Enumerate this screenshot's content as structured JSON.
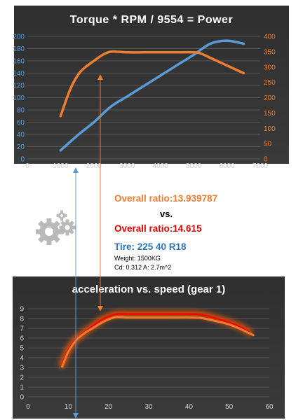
{
  "colors": {
    "torque": "#ED7D31",
    "power": "#5B9BD5",
    "accel_a": "#ED7D31",
    "accel_b": "#FF0000",
    "ratio_a_text": "#ED7D31",
    "ratio_b_text": "#E00000",
    "tire_text": "#2E75B6",
    "left_axis": "#5B9BD5",
    "right_axis": "#ED7D31"
  },
  "info": {
    "ratio_a": "Overall ratio:13.939787",
    "vs": "vs.",
    "ratio_b": "Overall ratio:14.615",
    "tire": "Tire: 225 40 R18",
    "weight": "Weight: 1500KG",
    "cd": "Cd: 0.312 A: 2.7m^2"
  },
  "icons": {
    "gears": "gears-icon"
  },
  "chart_data": [
    {
      "type": "line",
      "title": "Torque * RPM / 9554 = Power",
      "xlabel": "",
      "ylabel": "",
      "y2label": "",
      "xlim": [
        0,
        7000
      ],
      "ylim": [
        0,
        200
      ],
      "y2lim": [
        0,
        400
      ],
      "x_ticks": [
        0,
        1000,
        2000,
        3000,
        4000,
        5000,
        6000,
        7000
      ],
      "y_ticks": [
        0,
        20,
        40,
        60,
        80,
        100,
        120,
        140,
        160,
        180,
        200
      ],
      "y2_ticks": [
        0,
        50,
        100,
        150,
        200,
        250,
        300,
        350,
        400
      ],
      "grid": true,
      "series": [
        {
          "axis": "left",
          "color": "#5B9BD5",
          "x": [
            1000,
            1500,
            2000,
            2500,
            3000,
            3500,
            4000,
            4500,
            5000,
            5500,
            6000,
            6500
          ],
          "y": [
            14,
            38,
            60,
            85,
            102,
            119,
            136,
            153,
            170,
            188,
            193,
            188
          ]
        },
        {
          "axis": "right",
          "color": "#ED7D31",
          "x": [
            1000,
            1300,
            1600,
            2000,
            2300,
            2500,
            2700,
            3000,
            3500,
            4000,
            4500,
            5000,
            5200,
            5500,
            6000,
            6500
          ],
          "y": [
            140,
            230,
            285,
            320,
            342,
            350,
            350,
            348,
            348,
            348,
            348,
            348,
            345,
            330,
            305,
            280
          ]
        }
      ]
    },
    {
      "type": "line",
      "title": "acceleration vs. speed (gear 1)",
      "xlabel": "",
      "ylabel": "",
      "xlim": [
        0,
        60
      ],
      "ylim": [
        0,
        9
      ],
      "x_ticks": [
        0,
        10,
        20,
        30,
        40,
        50,
        60
      ],
      "y_ticks": [
        0,
        1,
        2,
        3,
        4,
        5,
        6,
        7,
        8,
        9
      ],
      "grid": true,
      "series": [
        {
          "color": "#FF0000",
          "x": [
            8.5,
            10,
            12,
            14,
            16,
            18,
            20,
            22,
            25,
            30,
            35,
            40,
            43,
            46,
            50,
            53,
            55
          ],
          "y": [
            3.3,
            4.8,
            5.9,
            6.6,
            7.2,
            7.8,
            8.2,
            8.45,
            8.45,
            8.45,
            8.45,
            8.45,
            8.4,
            8.1,
            7.6,
            7.1,
            6.6
          ]
        },
        {
          "color": "#ED7D31",
          "x": [
            8.5,
            10,
            12,
            14,
            16,
            18,
            20,
            22,
            25,
            30,
            35,
            40,
            43,
            46,
            50,
            53,
            56
          ],
          "y": [
            3.1,
            4.6,
            5.8,
            6.5,
            7.0,
            7.5,
            7.9,
            8.15,
            8.1,
            8.1,
            8.1,
            8.1,
            8.05,
            7.8,
            7.4,
            6.9,
            6.3
          ]
        }
      ]
    }
  ]
}
